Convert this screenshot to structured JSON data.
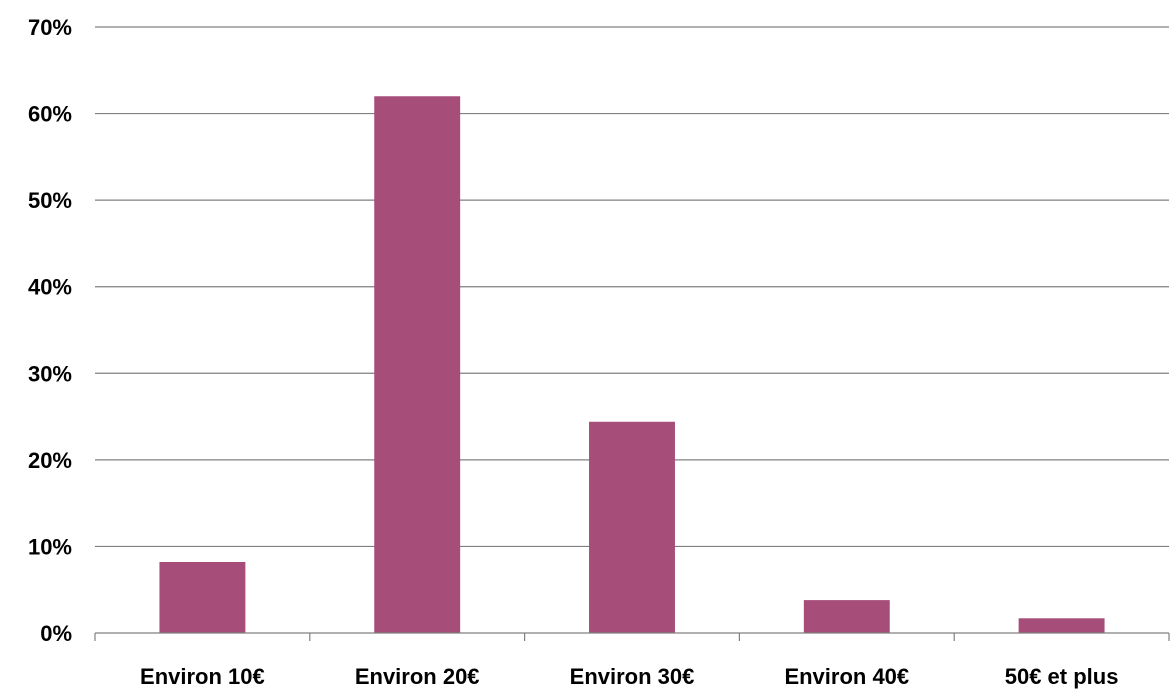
{
  "chart_data": {
    "type": "bar",
    "title": "",
    "xlabel": "",
    "ylabel": "",
    "categories": [
      "Environ 10€",
      "Environ 20€",
      "Environ 30€",
      "Environ 40€",
      "50€ et plus"
    ],
    "series": [
      {
        "values": [
          8.2,
          62.0,
          24.4,
          3.8,
          1.7
        ],
        "color": "#a64d79"
      }
    ],
    "ylim": [
      0,
      70
    ],
    "yticks": [
      0,
      10,
      20,
      30,
      40,
      50,
      60,
      70
    ],
    "ytick_labels": [
      "0%",
      "10%",
      "20%",
      "30%",
      "40%",
      "50%",
      "60%",
      "70%"
    ],
    "grid": true,
    "grid_color": "#808080",
    "legend": "none"
  }
}
